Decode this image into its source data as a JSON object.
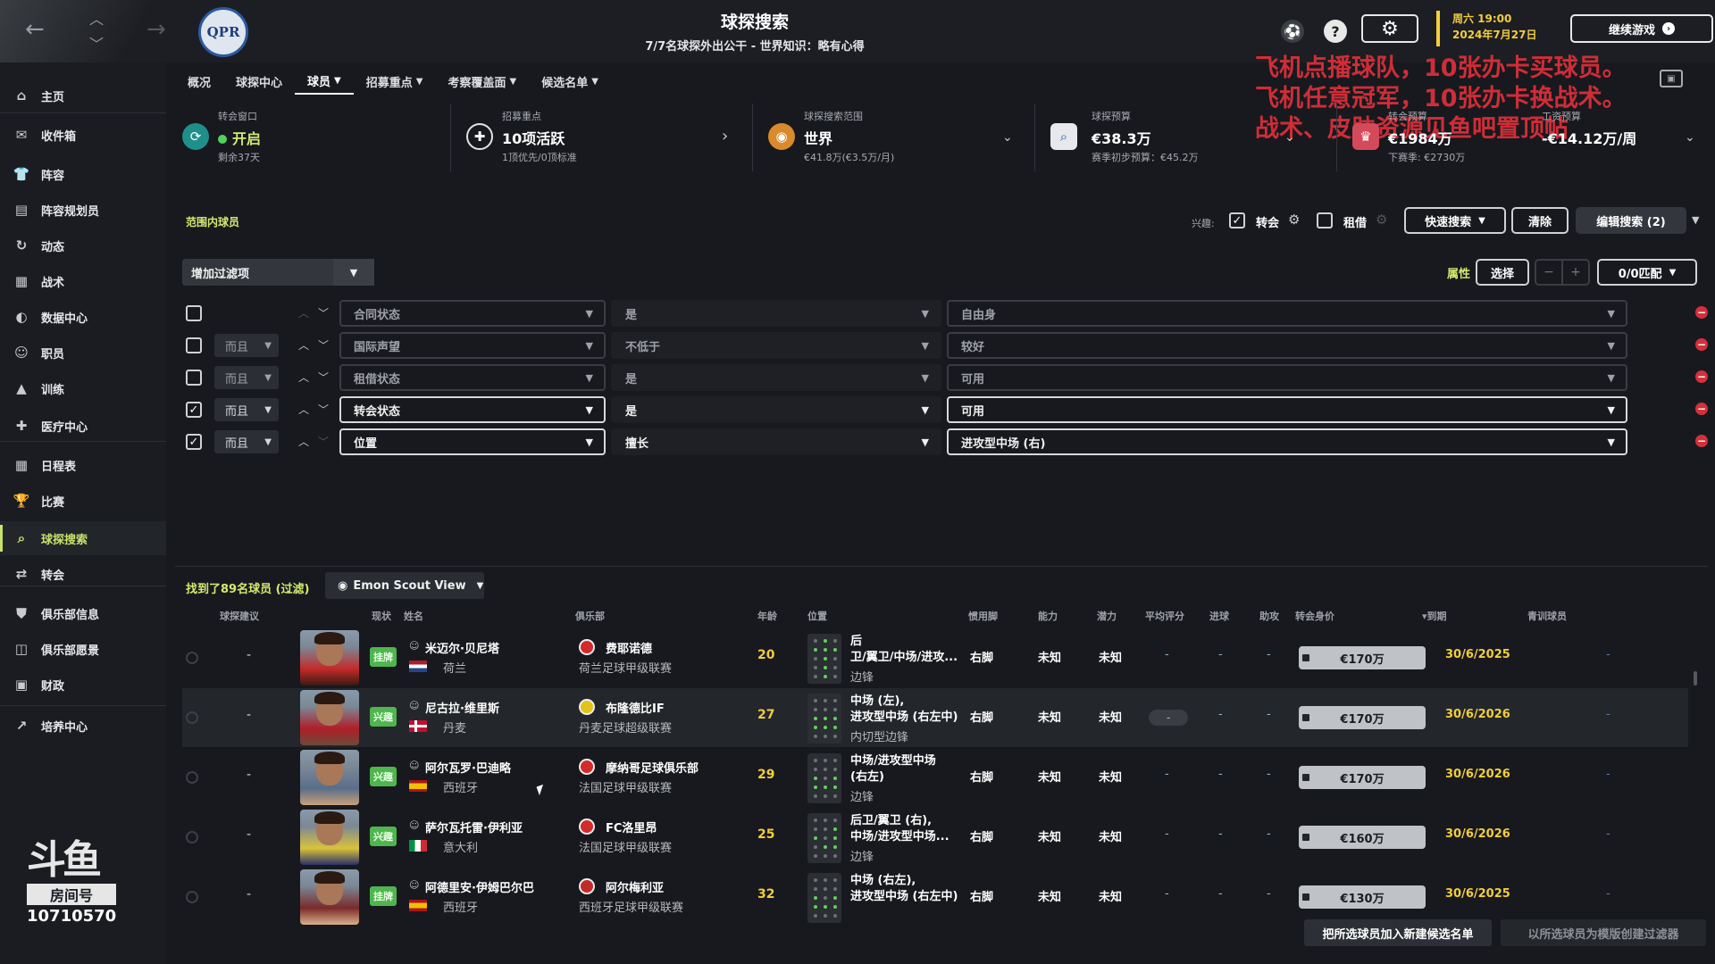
{
  "topbar": {
    "title": "球探搜索",
    "subtitle": "7/7名球探外出公干 - 世界知识：略有心得",
    "date_line1": "周六 19:00",
    "date_line2": "2024年7月27日",
    "continue_label": "继续游戏",
    "club_logo_text": "QPR"
  },
  "overlay": {
    "line1": "飞机点播球队，10张办卡买球员。",
    "line2": "飞机任意冠军，10张办卡换战术。",
    "line3": "战术、皮肤资源见鱼吧置顶帖"
  },
  "sidebar": {
    "items": [
      {
        "label": "主页",
        "icon": "home-icon"
      },
      {
        "label": "收件箱",
        "icon": "inbox-icon"
      },
      {
        "label": "阵容",
        "icon": "shirt-icon"
      },
      {
        "label": "阵容规划员",
        "icon": "clipboard-icon"
      },
      {
        "label": "动态",
        "icon": "dynamics-icon"
      },
      {
        "label": "战术",
        "icon": "tactics-icon"
      },
      {
        "label": "数据中心",
        "icon": "data-icon"
      },
      {
        "label": "职员",
        "icon": "staff-icon"
      },
      {
        "label": "训练",
        "icon": "training-icon"
      },
      {
        "label": "医疗中心",
        "icon": "medical-icon"
      },
      {
        "label": "日程表",
        "icon": "calendar-icon"
      },
      {
        "label": "比赛",
        "icon": "trophy-icon"
      },
      {
        "label": "球探搜索",
        "icon": "scout-icon"
      },
      {
        "label": "转会",
        "icon": "transfer-icon"
      },
      {
        "label": "俱乐部信息",
        "icon": "club-info-icon"
      },
      {
        "label": "俱乐部愿景",
        "icon": "vision-icon"
      },
      {
        "label": "财政",
        "icon": "finance-icon"
      },
      {
        "label": "培养中心",
        "icon": "development-icon"
      }
    ],
    "watermark_brand": "斗鱼",
    "watermark_room_label": "房间号",
    "watermark_room_number": "10710570"
  },
  "tabs": [
    {
      "label": "概况",
      "has_menu": false
    },
    {
      "label": "球探中心",
      "has_menu": false
    },
    {
      "label": "球员",
      "has_menu": true
    },
    {
      "label": "招募重点",
      "has_menu": true
    },
    {
      "label": "考察覆盖面",
      "has_menu": true
    },
    {
      "label": "候选名单",
      "has_menu": true
    }
  ],
  "info": {
    "window_label": "转会窗口",
    "window_value": "开启",
    "window_sub": "剩余37天",
    "focus_label": "招募重点",
    "focus_value": "10项活跃",
    "focus_sub": "1顶优先/0顶标准",
    "range_label": "球探搜索范围",
    "range_value": "世界",
    "range_sub": "€41.8万(€3.5万/月)",
    "budget_label": "球探预算",
    "budget_value": "€38.3万",
    "budget_sub": "赛季初步预算：€45.2万",
    "transfer_label": "转会预算",
    "transfer_value": "€1984万",
    "transfer_sub": "下赛季: €2730万",
    "wage_label": "工资预算",
    "wage_value": "-€14.12万/周"
  },
  "filters": {
    "in_range": "范围内球员",
    "interest_label": "兴趣:",
    "transfer_label": "转会",
    "loan_label": "租借",
    "quick_search": "快速搜索",
    "clear": "清除",
    "edit_search": "编辑搜索 (2)",
    "add_filter": "增加过滤项",
    "attributes_label": "属性",
    "select_label": "选择",
    "match_label": "0/0匹配",
    "rows": [
      {
        "checked": false,
        "and": "",
        "field": "合同状态",
        "op": "是",
        "value": "自由身"
      },
      {
        "checked": false,
        "and": "而且",
        "field": "国际声望",
        "op": "不低于",
        "value": "较好"
      },
      {
        "checked": false,
        "and": "而且",
        "field": "租借状态",
        "op": "是",
        "value": "可用"
      },
      {
        "checked": true,
        "and": "而且",
        "field": "转会状态",
        "op": "是",
        "value": "可用"
      },
      {
        "checked": true,
        "and": "而且",
        "field": "位置",
        "op": "擅长",
        "value": "进攻型中场 (右)"
      }
    ]
  },
  "results": {
    "found": "找到了89名球员 (过滤)",
    "view_label": "Emon Scout View",
    "columns": [
      "球探建议",
      "现状",
      "姓名",
      "俱乐部",
      "年龄",
      "位置",
      "惯用脚",
      "能力",
      "潜力",
      "平均评分",
      "进球",
      "助攻",
      "转会身价",
      "▾到期",
      "青训球员"
    ],
    "players": [
      {
        "advice": "-",
        "status": "挂牌",
        "name": "米迈尔·贝尼塔",
        "nation": "荷兰",
        "club": "费耶诺德",
        "league": "荷兰足球甲级联赛",
        "age": "20",
        "pos1": "后",
        "pos2": "卫/翼卫/中场/进攻...",
        "role": "边锋",
        "foot": "右脚",
        "ability": "未知",
        "potential": "未知",
        "avg": "-",
        "goals": "-",
        "assists": "-",
        "value": "€170万",
        "expiry": "30/6/2025",
        "youth": "-"
      },
      {
        "advice": "-",
        "status": "兴趣",
        "name": "尼古拉·维里斯",
        "nation": "丹麦",
        "club": "布隆德比IF",
        "league": "丹麦足球超级联赛",
        "age": "27",
        "pos1": "中场 (左),",
        "pos2": "进攻型中场 (右左中)",
        "role": "内切型边锋",
        "foot": "右脚",
        "ability": "未知",
        "potential": "未知",
        "avg": "-",
        "goals": "-",
        "assists": "-",
        "value": "€170万",
        "expiry": "30/6/2026",
        "youth": "-"
      },
      {
        "advice": "-",
        "status": "兴趣",
        "name": "阿尔瓦罗·巴迪略",
        "nation": "西班牙",
        "club": "摩纳哥足球俱乐部",
        "league": "法国足球甲级联赛",
        "age": "29",
        "pos1": "中场/进攻型中场",
        "pos2": "(右左)",
        "role": "边锋",
        "foot": "右脚",
        "ability": "未知",
        "potential": "未知",
        "avg": "-",
        "goals": "-",
        "assists": "-",
        "value": "€170万",
        "expiry": "30/6/2026",
        "youth": "-"
      },
      {
        "advice": "-",
        "status": "兴趣",
        "name": "萨尔瓦托雷·伊利亚",
        "nation": "意大利",
        "club": "FC洛里昂",
        "league": "法国足球甲级联赛",
        "age": "25",
        "pos1": "后卫/翼卫 (右),",
        "pos2": "中场/进攻型中场...",
        "role": "边锋",
        "foot": "右脚",
        "ability": "未知",
        "potential": "未知",
        "avg": "-",
        "goals": "-",
        "assists": "-",
        "value": "€160万",
        "expiry": "30/6/2026",
        "youth": "-"
      },
      {
        "advice": "-",
        "status": "挂牌",
        "name": "阿德里安·伊姆巴尔巴",
        "nation": "西班牙",
        "club": "阿尔梅利亚",
        "league": "西班牙足球甲级联赛",
        "age": "32",
        "pos1": "中场 (右左),",
        "pos2": "进攻型中场 (右左中)",
        "role": "",
        "foot": "右脚",
        "ability": "未知",
        "potential": "未知",
        "avg": "-",
        "goals": "-",
        "assists": "-",
        "value": "€130万",
        "expiry": "30/6/2025",
        "youth": "-"
      }
    ],
    "add_shortlist": "把所选球员加入新建候选名单",
    "create_filter": "以所选球员为模版创建过滤器"
  }
}
